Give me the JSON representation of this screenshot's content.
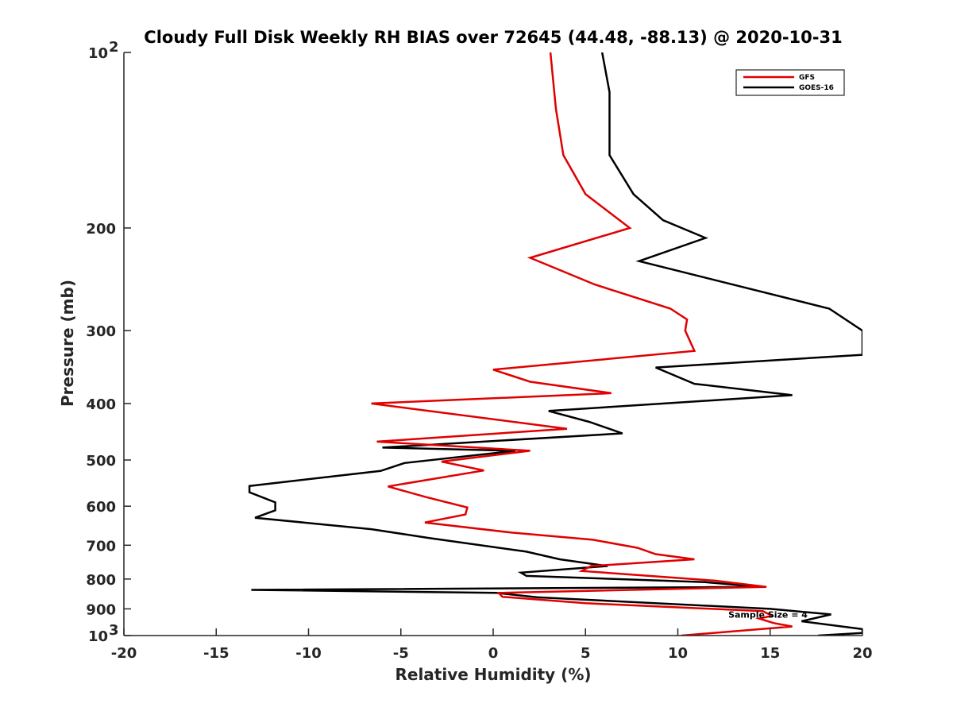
{
  "chart_data": {
    "type": "line",
    "title": "Cloudy Full Disk Weekly RH BIAS over 72645 (44.48, -88.13) @ 2020-10-31",
    "xlabel": "Relative Humidity (%)",
    "ylabel": "Pressure (mb)",
    "xlim": [
      -20,
      20
    ],
    "ylim": [
      100,
      1000
    ],
    "y_scale": "log",
    "y_reversed": true,
    "grid": false,
    "legend_position": "top-right",
    "x_ticks": [
      "-20",
      "-15",
      "-10",
      "-5",
      "0",
      "5",
      "10",
      "15",
      "20"
    ],
    "x_tick_values": [
      -20,
      -15,
      -10,
      -5,
      0,
      5,
      10,
      15,
      20
    ],
    "y_ticks": [
      {
        "value": 100,
        "base": "10",
        "exp": "2"
      },
      {
        "value": 200,
        "base": "200",
        "exp": ""
      },
      {
        "value": 300,
        "base": "300",
        "exp": ""
      },
      {
        "value": 400,
        "base": "400",
        "exp": ""
      },
      {
        "value": 500,
        "base": "500",
        "exp": ""
      },
      {
        "value": 600,
        "base": "600",
        "exp": ""
      },
      {
        "value": 700,
        "base": "700",
        "exp": ""
      },
      {
        "value": 800,
        "base": "800",
        "exp": ""
      },
      {
        "value": 900,
        "base": "900",
        "exp": ""
      },
      {
        "value": 1000,
        "base": "10",
        "exp": "3"
      }
    ],
    "series": [
      {
        "name": "GFS",
        "color": "#e00000",
        "points": [
          [
            3.1,
            100
          ],
          [
            3.4,
            125
          ],
          [
            3.8,
            150
          ],
          [
            5,
            175
          ],
          [
            7.4,
            200
          ],
          [
            2.0,
            225
          ],
          [
            5.5,
            250
          ],
          [
            9.6,
            275
          ],
          [
            10.5,
            287
          ],
          [
            10.4,
            300
          ],
          [
            10.9,
            325
          ],
          [
            0,
            350
          ],
          [
            2,
            367
          ],
          [
            6.4,
            384
          ],
          [
            -6.6,
            400
          ],
          [
            4.0,
            442
          ],
          [
            -6.3,
            465
          ],
          [
            2.0,
            482
          ],
          [
            -2.8,
            503
          ],
          [
            -0.5,
            521
          ],
          [
            -5.7,
            555
          ],
          [
            -3.7,
            578
          ],
          [
            -1.4,
            603
          ],
          [
            -1.5,
            620
          ],
          [
            -3.7,
            640
          ],
          [
            1,
            666
          ],
          [
            5.4,
            685
          ],
          [
            7.8,
            707
          ],
          [
            8.8,
            725
          ],
          [
            10.9,
            740
          ],
          [
            5.3,
            760
          ],
          [
            4.8,
            775
          ],
          [
            12,
            805
          ],
          [
            14.8,
            825
          ],
          [
            0.3,
            845
          ],
          [
            0.5,
            858
          ],
          [
            5,
            880
          ],
          [
            14.6,
            908
          ],
          [
            15.1,
            925
          ],
          [
            14.4,
            935
          ],
          [
            15.2,
            952
          ],
          [
            16.2,
            965
          ],
          [
            10.2,
            1000
          ]
        ]
      },
      {
        "name": "GOES-16",
        "color": "#000000",
        "points": [
          [
            5.9,
            100
          ],
          [
            6.3,
            117
          ],
          [
            6.3,
            150
          ],
          [
            7.6,
            175
          ],
          [
            9.2,
            194
          ],
          [
            11.5,
            208
          ],
          [
            7.9,
            228
          ],
          [
            18.2,
            275
          ],
          [
            20,
            300
          ],
          [
            20,
            330
          ],
          [
            8.8,
            347
          ],
          [
            10.9,
            370
          ],
          [
            16.2,
            387
          ],
          [
            3.0,
            412
          ],
          [
            5.2,
            430
          ],
          [
            7.0,
            450
          ],
          [
            -6.0,
            476
          ],
          [
            1.2,
            482
          ],
          [
            -4.8,
            506
          ],
          [
            -6.1,
            522
          ],
          [
            -13.2,
            554
          ],
          [
            -13.2,
            568
          ],
          [
            -11.8,
            591
          ],
          [
            -11.8,
            610
          ],
          [
            -12.9,
            628
          ],
          [
            -6.6,
            657
          ],
          [
            -3.5,
            680
          ],
          [
            1.8,
            718
          ],
          [
            3.6,
            740
          ],
          [
            6.2,
            760
          ],
          [
            1.5,
            780
          ],
          [
            1.8,
            790
          ],
          [
            11.5,
            810
          ],
          [
            14.5,
            825
          ],
          [
            -13.1,
            835
          ],
          [
            0.2,
            845
          ],
          [
            2.4,
            860
          ],
          [
            15,
            900
          ],
          [
            18.3,
            920
          ],
          [
            16.7,
            945
          ],
          [
            20,
            975
          ],
          [
            20,
            990
          ],
          [
            17.6,
            1000
          ]
        ]
      }
    ],
    "annotation": "Sample Size = 4",
    "annotation_x": 17.2,
    "annotation_y": 920
  }
}
